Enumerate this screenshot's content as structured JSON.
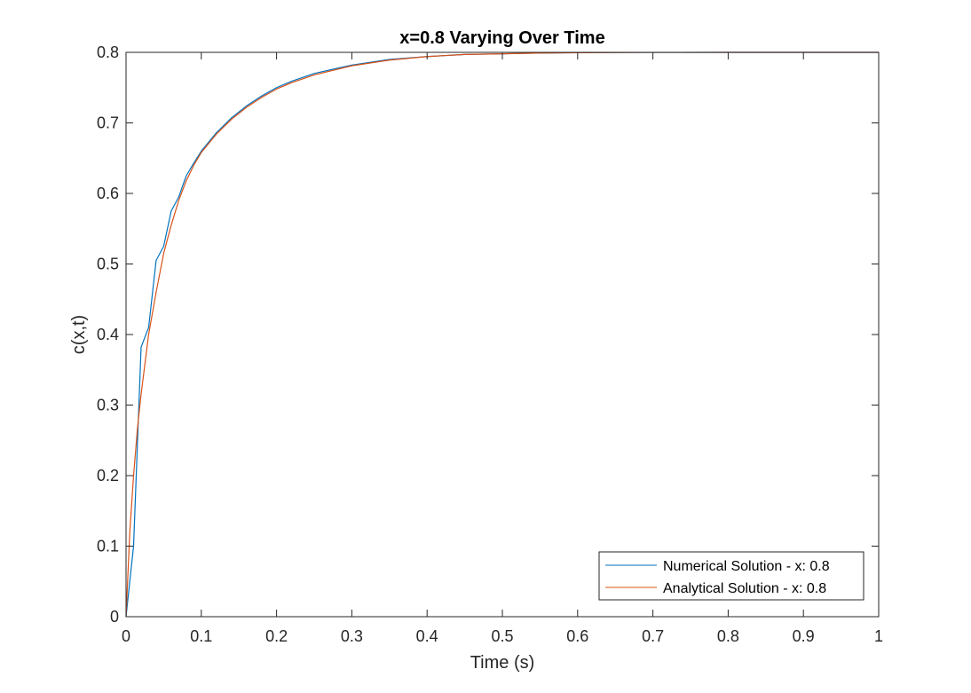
{
  "chart_data": {
    "type": "line",
    "title": "x=0.8 Varying Over Time",
    "xlabel": "Time (s)",
    "ylabel": "c(x,t)",
    "xlim": [
      0,
      1
    ],
    "ylim": [
      0,
      0.8
    ],
    "xticks": [
      "0",
      "0.1",
      "0.2",
      "0.3",
      "0.4",
      "0.5",
      "0.6",
      "0.7",
      "0.8",
      "0.9",
      "1"
    ],
    "yticks": [
      "0",
      "0.1",
      "0.2",
      "0.3",
      "0.4",
      "0.5",
      "0.6",
      "0.7",
      "0.8"
    ],
    "grid": false,
    "legend_position": "bottom-right",
    "series": [
      {
        "name": "Numerical Solution - x: 0.8",
        "color": "#0072BD",
        "x": [
          0,
          0.01,
          0.02,
          0.03,
          0.04,
          0.05,
          0.06,
          0.07,
          0.08,
          0.09,
          0.1,
          0.12,
          0.14,
          0.16,
          0.18,
          0.2,
          0.22,
          0.25,
          0.3,
          0.35,
          0.4,
          0.45,
          0.5,
          0.55,
          0.6,
          0.65,
          0.7,
          0.8,
          0.9,
          1.0
        ],
        "y": [
          0,
          0.1,
          0.382,
          0.41,
          0.505,
          0.525,
          0.575,
          0.595,
          0.625,
          0.643,
          0.66,
          0.686,
          0.707,
          0.724,
          0.738,
          0.75,
          0.759,
          0.77,
          0.782,
          0.79,
          0.794,
          0.797,
          0.798,
          0.799,
          0.7995,
          0.7998,
          0.7999,
          0.8,
          0.8,
          0.8
        ]
      },
      {
        "name": "Analytical Solution - x: 0.8",
        "color": "#D95319",
        "x": [
          0,
          0.005,
          0.01,
          0.015,
          0.02,
          0.03,
          0.04,
          0.05,
          0.06,
          0.07,
          0.08,
          0.09,
          0.1,
          0.12,
          0.14,
          0.16,
          0.18,
          0.2,
          0.22,
          0.25,
          0.3,
          0.35,
          0.4,
          0.45,
          0.5,
          0.55,
          0.6,
          0.65,
          0.7,
          0.8,
          0.9,
          1.0
        ],
        "y": [
          0,
          0.12,
          0.2,
          0.265,
          0.315,
          0.4,
          0.46,
          0.515,
          0.555,
          0.59,
          0.618,
          0.64,
          0.658,
          0.684,
          0.705,
          0.722,
          0.736,
          0.748,
          0.757,
          0.768,
          0.781,
          0.789,
          0.794,
          0.797,
          0.798,
          0.799,
          0.7995,
          0.7998,
          0.7999,
          0.8,
          0.8,
          0.8
        ]
      }
    ]
  }
}
